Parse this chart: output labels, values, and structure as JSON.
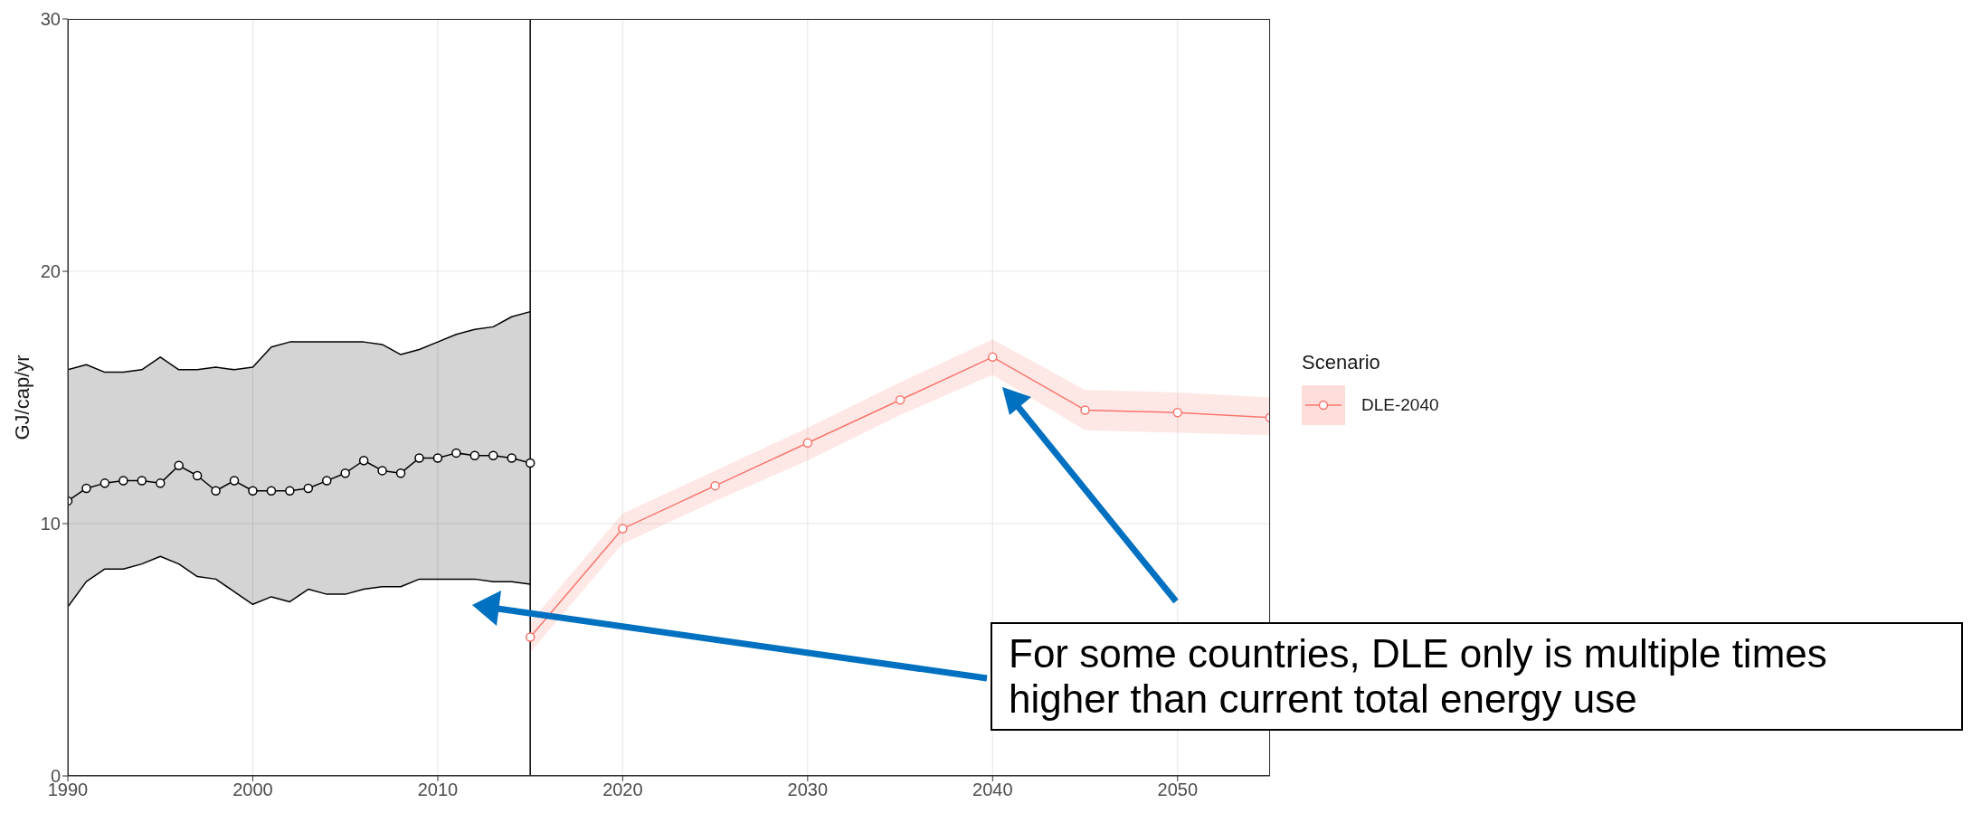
{
  "chart_data": {
    "type": "line",
    "ylabel": "GJ/cap/yr",
    "legend_title": "Scenario",
    "legend": "right",
    "grid": true,
    "marker": "circle",
    "line_style": "solid",
    "xlim": [
      1990,
      2055
    ],
    "xticks": [
      1990,
      2000,
      2010,
      2020,
      2030,
      2040,
      2050
    ],
    "ylim": [
      0,
      30
    ],
    "yticks": [
      0,
      10,
      20,
      30
    ],
    "ref_lines": [
      {
        "axis": "x",
        "value": 2015,
        "color": "#000000"
      }
    ],
    "annotations": [
      "For some countries, DLE only is multiple times higher than current total energy use"
    ],
    "series": [
      {
        "color": "#000000",
        "x": [
          1990,
          1991,
          1992,
          1993,
          1994,
          1995,
          1996,
          1997,
          1998,
          1999,
          2000,
          2001,
          2002,
          2003,
          2004,
          2005,
          2006,
          2007,
          2008,
          2009,
          2010,
          2011,
          2012,
          2013,
          2014,
          2015
        ],
        "values": [
          10.9,
          11.4,
          11.6,
          11.7,
          11.7,
          11.6,
          12.3,
          11.9,
          11.3,
          11.7,
          11.3,
          11.3,
          11.3,
          11.4,
          11.7,
          12.0,
          12.5,
          12.1,
          12.0,
          12.6,
          12.6,
          12.8,
          12.7,
          12.7,
          12.6,
          12.4
        ],
        "lower": [
          6.7,
          7.7,
          8.2,
          8.2,
          8.4,
          8.7,
          8.4,
          7.9,
          7.8,
          7.3,
          6.8,
          7.1,
          6.9,
          7.4,
          7.2,
          7.2,
          7.4,
          7.5,
          7.5,
          7.8,
          7.8,
          7.8,
          7.8,
          7.7,
          7.7,
          7.6
        ],
        "upper": [
          16.1,
          16.3,
          16.0,
          16.0,
          16.1,
          16.6,
          16.1,
          16.1,
          16.2,
          16.1,
          16.2,
          17.0,
          17.2,
          17.2,
          17.2,
          17.2,
          17.2,
          17.1,
          16.7,
          16.9,
          17.2,
          17.5,
          17.7,
          17.8,
          18.2,
          18.4
        ]
      },
      {
        "color": "#000000",
        "marker": "none",
        "x": [
          1990,
          1991,
          1992,
          1993,
          1994,
          1995,
          1996,
          1997,
          1998,
          1999,
          2000,
          2001,
          2002,
          2003,
          2004,
          2005,
          2006,
          2007,
          2008,
          2009,
          2010,
          2011,
          2012,
          2013,
          2014,
          2015
        ],
        "values": [
          6.7,
          7.7,
          8.2,
          8.2,
          8.4,
          8.7,
          8.4,
          7.9,
          7.8,
          7.3,
          6.8,
          7.1,
          6.9,
          7.4,
          7.2,
          7.2,
          7.4,
          7.5,
          7.5,
          7.8,
          7.8,
          7.8,
          7.8,
          7.7,
          7.7,
          7.6
        ]
      },
      {
        "color": "#000000",
        "marker": "none",
        "x": [
          1990,
          1991,
          1992,
          1993,
          1994,
          1995,
          1996,
          1997,
          1998,
          1999,
          2000,
          2001,
          2002,
          2003,
          2004,
          2005,
          2006,
          2007,
          2008,
          2009,
          2010,
          2011,
          2012,
          2013,
          2014,
          2015
        ],
        "values": [
          16.1,
          16.3,
          16.0,
          16.0,
          16.1,
          16.6,
          16.1,
          16.1,
          16.2,
          16.1,
          16.2,
          17.0,
          17.2,
          17.2,
          17.2,
          17.2,
          17.2,
          17.1,
          16.7,
          16.9,
          17.2,
          17.5,
          17.7,
          17.8,
          18.2,
          18.4
        ]
      },
      {
        "name": "DLE-2040",
        "color": "#f8766d",
        "x": [
          2015,
          2020,
          2025,
          2030,
          2035,
          2040,
          2045,
          2050,
          2055
        ],
        "values": [
          5.5,
          9.8,
          11.5,
          13.2,
          14.9,
          16.6,
          14.5,
          14.4,
          14.2
        ],
        "lower": [
          4.9,
          9.2,
          10.9,
          12.5,
          14.3,
          15.9,
          13.7,
          13.6,
          13.5
        ],
        "upper": [
          6.1,
          10.4,
          12.1,
          13.8,
          15.6,
          17.3,
          15.3,
          15.2,
          15.0
        ]
      }
    ]
  }
}
